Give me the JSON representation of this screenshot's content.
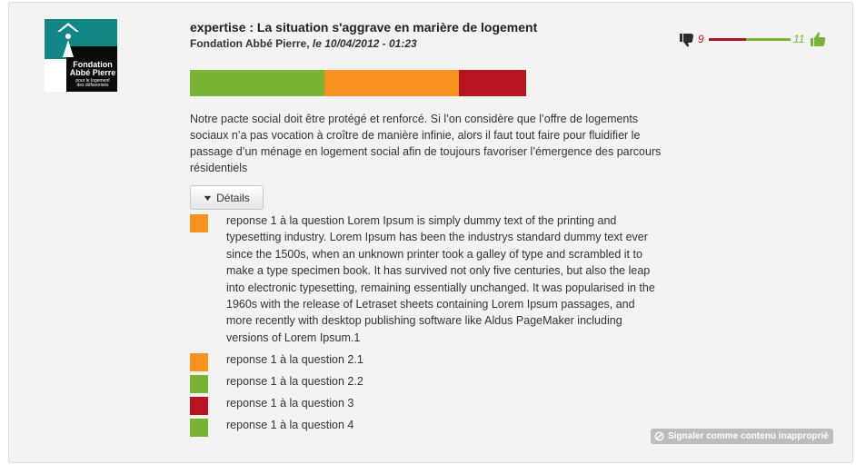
{
  "logo": {
    "name_line1": "Fondation",
    "name_line2": "Abbé Pierre",
    "sub_line1": "pour le logement",
    "sub_line2": "des défavorisés",
    "colors": {
      "teal": "#118684",
      "black": "#0b0b0b"
    }
  },
  "post": {
    "title": "expertise : La situation s'aggrave en marière de logement",
    "author": "Fondation Abbé Pierre,",
    "date": " le 10/04/2012 - 01:23",
    "body": "Notre pacte social doit être protégé et renforcé. Si l’on considère que l’offre de logements sociaux n’a pas vocation à croître de manière infinie, alors il faut tout faire pour fluidifier le passage d’un ménage en logement social afin de toujours favoriser l’émergence des parcours résidentiels"
  },
  "votes": {
    "down_count": "9",
    "up_count": "11",
    "down_icon": "thumbs-down-icon",
    "up_icon": "thumbs-up-icon",
    "down_color": "#b01525",
    "up_color": "#7ab434",
    "ratio_down": 0.45
  },
  "opinion_bar": {
    "segments": [
      {
        "color": "#7ab434",
        "fraction": 0.4
      },
      {
        "color": "#f7931e",
        "fraction": 0.4
      },
      {
        "color": "#b8141f",
        "fraction": 0.2
      }
    ]
  },
  "details_button": {
    "label": "Détails",
    "icon": "chevron-down-icon"
  },
  "answers": [
    {
      "color": "#f7931e",
      "text": "reponse 1 à la question Lorem Ipsum is simply dummy text of the printing and typesetting industry. Lorem Ipsum has been the industrys standard dummy text ever since the 1500s, when an unknown printer took a galley of type and scrambled it to make a type specimen book. It has survived not only five centuries, but also the leap into electronic typesetting, remaining essentially unchanged. It was popularised in the 1960s with the release of Letraset sheets containing Lorem Ipsum passages, and more recently with desktop publishing software like Aldus PageMaker including versions of Lorem Ipsum.1"
    },
    {
      "color": "#f7931e",
      "text": "reponse 1 à la question 2.1"
    },
    {
      "color": "#7ab434",
      "text": "reponse 1 à la question 2.2"
    },
    {
      "color": "#b8141f",
      "text": "reponse 1 à la question 3"
    },
    {
      "color": "#7ab434",
      "text": "reponse 1 à la question 4"
    }
  ],
  "report": {
    "label": "Signaler comme contenu inapproprié",
    "icon": "ban-icon"
  }
}
